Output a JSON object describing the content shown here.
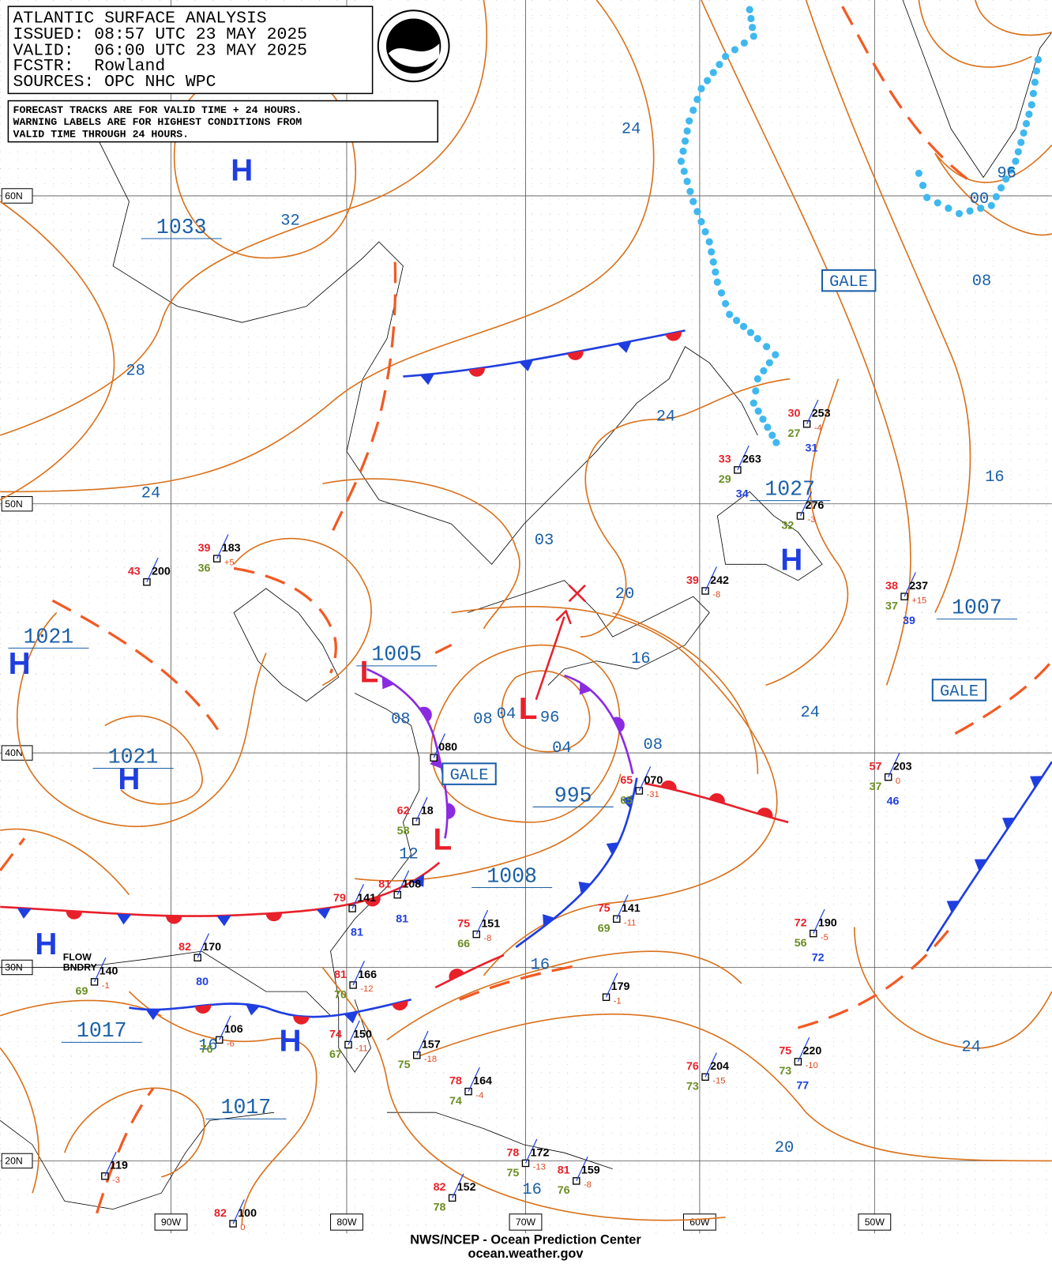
{
  "header": {
    "title": "ATLANTIC SURFACE ANALYSIS",
    "issued": "ISSUED: 08:57 UTC 23 MAY 2025",
    "valid": "VALID:  06:00 UTC 23 MAY 2025",
    "forecaster": "FCSTR:  Rowland",
    "sources": "SOURCES: OPC NHC WPC"
  },
  "note": [
    "FORECAST TRACKS ARE FOR VALID TIME + 24 HOURS.",
    "WARNING LABELS ARE FOR HIGHEST CONDITIONS FROM",
    "VALID TIME THROUGH 24 HOURS."
  ],
  "latitudes": [
    "60N",
    "50N",
    "40N",
    "30N",
    "20N"
  ],
  "longitudes": [
    "90W",
    "80W",
    "70W",
    "60W",
    "50W"
  ],
  "pressure_symbols": [
    "H",
    "H",
    "H",
    "L",
    "L",
    "L",
    "H",
    "H",
    "H",
    "H"
  ],
  "pressure_labels": [
    1033,
    1021,
    1021,
    1005,
    995,
    1008,
    1027,
    1007,
    1017,
    1017
  ],
  "isobar_labels": [
    "24",
    "32",
    "28",
    "24",
    "24",
    "03",
    "20",
    "16",
    "08",
    "08",
    "04",
    "96",
    "04",
    "08",
    "24",
    "16",
    "08",
    "96",
    "00",
    "12",
    "16",
    "16",
    "24",
    "20",
    "16"
  ],
  "warnings": [
    "GALE",
    "GALE",
    "GALE"
  ],
  "boundary_label": [
    "FLOW",
    "BNDRY"
  ],
  "stations": [
    {
      "temp": 30,
      "pressure": "253",
      "tendency": "-4",
      "dewpoint": 27,
      "extra": 31
    },
    {
      "temp": 33,
      "pressure": "263",
      "dewpoint": 29,
      "extra": 34
    },
    {
      "pressure": "276",
      "tendency": "-3",
      "dewpoint": 32
    },
    {
      "temp": 39,
      "pressure": "242",
      "tendency": "-8"
    },
    {
      "temp": 38,
      "pressure": "237",
      "tendency": "+15",
      "dewpoint": 37,
      "extra": 39
    },
    {
      "temp": 39,
      "pressure": "183",
      "tendency": "+5",
      "dewpoint": 36
    },
    {
      "temp": 43,
      "pressure": "200"
    },
    {
      "pressure": "080"
    },
    {
      "temp": 57,
      "pressure": "203",
      "tendency": "0",
      "dewpoint": 37,
      "extra": 46
    },
    {
      "temp": 65,
      "pressure": "070",
      "tendency": "-31",
      "dewpoint": 65
    },
    {
      "temp": 62,
      "pressure": "18",
      "dewpoint": 58
    },
    {
      "temp": 81,
      "pressure": "108",
      "extra": 81
    },
    {
      "temp": 79,
      "pressure": "141",
      "extra": 81
    },
    {
      "temp": 75,
      "pressure": "151",
      "tendency": "-8",
      "dewpoint": 66
    },
    {
      "temp": 75,
      "pressure": "141",
      "tendency": "-11",
      "dewpoint": 69
    },
    {
      "temp": 72,
      "pressure": "190",
      "tendency": "-5",
      "dewpoint": 56,
      "extra": 72
    },
    {
      "temp": 82,
      "pressure": "170",
      "extra": 80
    },
    {
      "pressure": "140",
      "tendency": "-1",
      "dewpoint": 69
    },
    {
      "temp": 81,
      "pressure": "166",
      "tendency": "-12",
      "dewpoint": 70
    },
    {
      "pressure": "179",
      "tendency": "-1"
    },
    {
      "temp": 74,
      "pressure": "150",
      "tendency": "-11",
      "dewpoint": 67
    },
    {
      "pressure": "157",
      "tendency": "-18",
      "dewpoint": 75
    },
    {
      "temp": 78,
      "pressure": "164",
      "tendency": "-4",
      "dewpoint": 74
    },
    {
      "temp": 76,
      "pressure": "204",
      "tendency": "-15",
      "dewpoint": 73
    },
    {
      "temp": 75,
      "pressure": "220",
      "tendency": "-10",
      "dewpoint": 73,
      "extra": 77
    },
    {
      "temp": 78,
      "pressure": "172",
      "tendency": "-13",
      "dewpoint": 75
    },
    {
      "temp": 81,
      "pressure": "159",
      "tendency": "-8",
      "dewpoint": 76
    },
    {
      "pressure": "119",
      "tendency": "-3"
    },
    {
      "temp": 82,
      "pressure": "100",
      "tendency": "0"
    },
    {
      "temp": 82,
      "pressure": "152",
      "dewpoint": 78
    },
    {
      "pressure": "106",
      "tendency": "-6",
      "dewpoint": 76
    }
  ],
  "footer": {
    "agency": "NWS/NCEP - Ocean Prediction Center",
    "url": "ocean.weather.gov"
  }
}
